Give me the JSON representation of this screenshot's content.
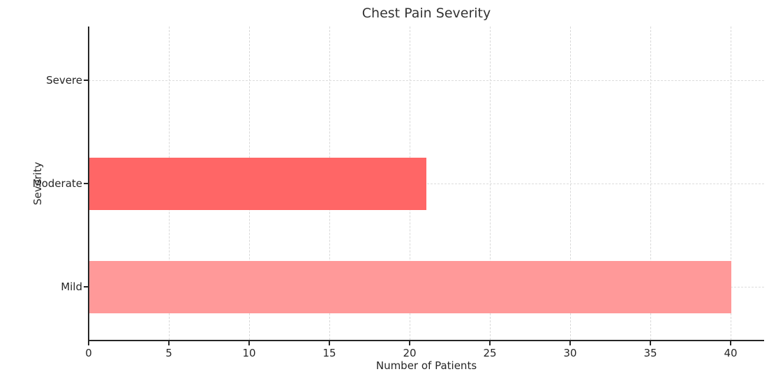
{
  "chart_data": {
    "type": "bar",
    "orientation": "horizontal",
    "title": "Chest Pain Severity",
    "xlabel": "Number of Patients",
    "ylabel": "Severity",
    "categories": [
      "Severe",
      "Moderate",
      "Mild"
    ],
    "values": [
      0,
      21,
      40
    ],
    "bar_colors": [
      "#ff3333",
      "#ff6666",
      "#ff9999"
    ],
    "x_ticks": [
      0,
      5,
      10,
      15,
      20,
      25,
      30,
      35,
      40
    ],
    "xlim": [
      0,
      42.1
    ],
    "grid": "dashed light-gray, vertical at x ticks and horizontal at category centers",
    "legend": "none",
    "background_color": "#ffffff",
    "axis_color": "#262626",
    "grid_color": "#d8d8d8",
    "text_color": "#262626"
  }
}
